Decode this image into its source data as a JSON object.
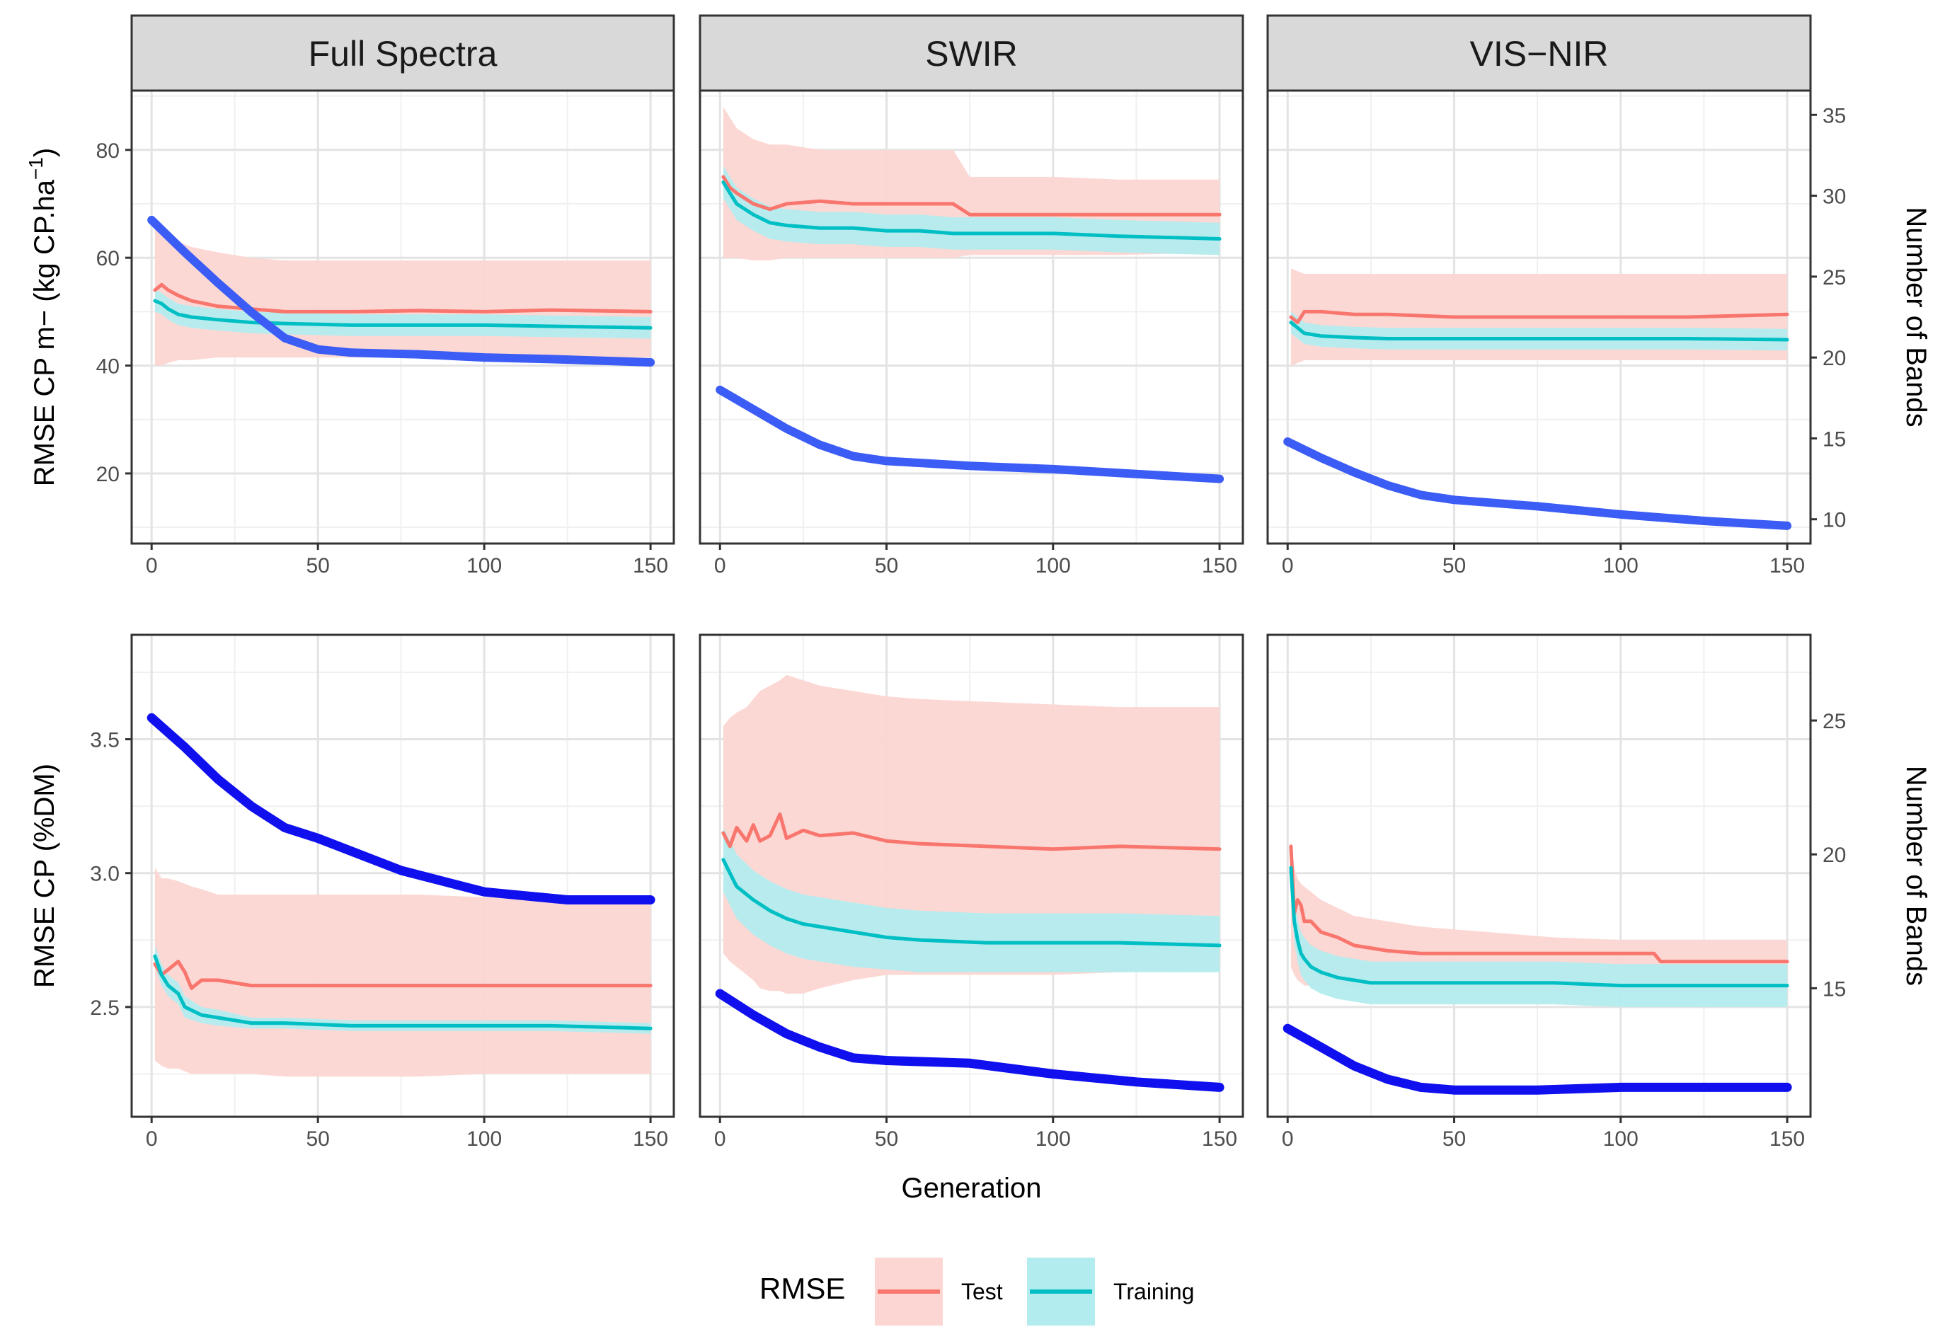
{
  "chart_data": {
    "type": "line",
    "facets": {
      "columns": [
        "Full Spectra",
        "SWIR",
        "VIS−NIR"
      ],
      "rows": [
        {
          "ylabel": "RMSE CP m− (kg CP.ha",
          "ylabel_superscript": "−1",
          "ylabel_suffix": ")",
          "ylim": [
            7,
            91
          ],
          "y_ticks": [
            20,
            40,
            60,
            80
          ],
          "y_tick_labels": [
            "20",
            "40",
            "60",
            "80"
          ],
          "sec_ylim": [
            8.5,
            36.5
          ],
          "sec_y_ticks": [
            10,
            15,
            20,
            25,
            30,
            35
          ],
          "sec_y_tick_labels": [
            "10",
            "15",
            "20",
            "25",
            "30",
            "35"
          ]
        },
        {
          "ylabel": "RMSE CP (%DM)",
          "ylabel_superscript": "",
          "ylabel_suffix": "",
          "ylim": [
            2.09,
            3.89
          ],
          "y_ticks": [
            2.5,
            3.0,
            3.5
          ],
          "y_tick_labels": [
            "2.5",
            "3.0",
            "3.5"
          ],
          "sec_ylim": [
            10.2,
            28.2
          ],
          "sec_y_ticks": [
            15,
            20,
            25
          ],
          "sec_y_tick_labels": [
            "15",
            "20",
            "25"
          ]
        }
      ]
    },
    "xlim": [
      -6,
      157
    ],
    "x_ticks": [
      0,
      50,
      100,
      150
    ],
    "x_tick_labels": [
      "0",
      "50",
      "100",
      "150"
    ],
    "xlabel": "Generation",
    "sec_ylabel": "Number of Bands",
    "legend": {
      "title": "RMSE",
      "entries": [
        {
          "label": "Test",
          "color": "#f8766d",
          "ribbon_color": "#fcd6d3"
        },
        {
          "label": "Training",
          "color": "#00bfc4",
          "ribbon_color": "#b3ecee"
        }
      ],
      "position": "bottom"
    },
    "bands_line_colors": [
      "#3b5cf5",
      "#1010ee"
    ],
    "panels": [
      {
        "row": 0,
        "col": 0,
        "test": {
          "x": [
            1,
            3,
            5,
            8,
            12,
            20,
            30,
            40,
            60,
            80,
            100,
            120,
            150
          ],
          "y": [
            54,
            55,
            54,
            53,
            52,
            51,
            50.5,
            50,
            50,
            50.2,
            50,
            50.3,
            50
          ],
          "lo": [
            40,
            40,
            40.5,
            41,
            41,
            41.5,
            41.5,
            41.5,
            41.5,
            41.5,
            41.5,
            41.5,
            41.5
          ],
          "hi": [
            67,
            66,
            65,
            63,
            62,
            61,
            60,
            59.5,
            59.5,
            59.5,
            59.5,
            59.5,
            59.5
          ]
        },
        "train": {
          "x": [
            1,
            3,
            5,
            8,
            12,
            20,
            30,
            40,
            60,
            80,
            100,
            120,
            150
          ],
          "y": [
            52,
            51.5,
            50.5,
            49.5,
            49,
            48.5,
            48,
            47.8,
            47.5,
            47.5,
            47.5,
            47.3,
            47
          ],
          "lo": [
            50,
            49.5,
            48.5,
            47.5,
            47,
            46.5,
            46,
            45.8,
            45.5,
            45.5,
            45.5,
            45.3,
            45
          ],
          "hi": [
            54,
            53.5,
            52.5,
            51.5,
            51,
            50.5,
            50,
            49.8,
            49.5,
            49.5,
            49.5,
            49.3,
            49
          ]
        },
        "bands": {
          "x": [
            0,
            10,
            20,
            30,
            40,
            50,
            60,
            80,
            100,
            120,
            150
          ],
          "y": [
            28.5,
            26.5,
            24.6,
            22.8,
            21.2,
            20.5,
            20.3,
            20.2,
            20.0,
            19.9,
            19.7
          ]
        }
      },
      {
        "row": 0,
        "col": 1,
        "test": {
          "x": [
            1,
            3,
            5,
            10,
            15,
            20,
            30,
            40,
            50,
            60,
            70,
            75,
            80,
            100,
            120,
            150
          ],
          "y": [
            75,
            73,
            72,
            70,
            69,
            70,
            70.5,
            70,
            70,
            70,
            70,
            68,
            68,
            68,
            68,
            68
          ],
          "lo": [
            60,
            60,
            60,
            59.5,
            59.5,
            60,
            60,
            60,
            60,
            60,
            60,
            60.5,
            60.5,
            60.5,
            60.5,
            61
          ],
          "hi": [
            88,
            86,
            84,
            82,
            81,
            81,
            80,
            80,
            80,
            80,
            80,
            75,
            75,
            75,
            74.5,
            74.5
          ]
        },
        "train": {
          "x": [
            1,
            3,
            5,
            10,
            15,
            20,
            30,
            40,
            50,
            60,
            70,
            80,
            100,
            120,
            150
          ],
          "y": [
            74,
            72,
            70,
            68,
            66.5,
            66,
            65.5,
            65.5,
            65,
            65,
            64.5,
            64.5,
            64.5,
            64,
            63.5
          ],
          "lo": [
            71,
            69,
            67,
            65,
            63.5,
            63,
            62.5,
            62.5,
            62,
            62,
            61.5,
            61.5,
            61.5,
            61,
            60.5
          ],
          "hi": [
            77,
            75,
            73,
            71,
            69.5,
            69,
            68.5,
            68.5,
            68,
            68,
            67.5,
            67.5,
            67.5,
            67,
            66.5
          ]
        },
        "bands": {
          "x": [
            0,
            10,
            20,
            30,
            40,
            50,
            75,
            100,
            125,
            150
          ],
          "y": [
            18.0,
            16.8,
            15.6,
            14.6,
            13.9,
            13.6,
            13.3,
            13.1,
            12.8,
            12.5
          ]
        }
      },
      {
        "row": 0,
        "col": 2,
        "test": {
          "x": [
            1,
            3,
            5,
            10,
            20,
            30,
            50,
            70,
            100,
            120,
            150
          ],
          "y": [
            49,
            48,
            50,
            50,
            49.5,
            49.5,
            49,
            49,
            49,
            49,
            49.5
          ],
          "lo": [
            40,
            40.5,
            41,
            41,
            41,
            41,
            41,
            41,
            41,
            41,
            41
          ],
          "hi": [
            58,
            57.5,
            57,
            57,
            57,
            57,
            57,
            57,
            57,
            57,
            57
          ]
        },
        "train": {
          "x": [
            1,
            3,
            5,
            10,
            20,
            30,
            50,
            70,
            100,
            120,
            150
          ],
          "y": [
            48,
            47,
            46,
            45.5,
            45.2,
            45,
            45,
            45,
            45,
            45,
            44.8
          ],
          "lo": [
            46,
            45,
            44,
            43.5,
            43.2,
            43,
            43,
            43,
            43,
            43,
            42.8
          ],
          "hi": [
            50,
            49,
            48,
            47.5,
            47.2,
            47,
            47,
            47,
            47,
            47,
            46.8
          ]
        },
        "bands": {
          "x": [
            0,
            10,
            20,
            30,
            40,
            50,
            75,
            100,
            125,
            150
          ],
          "y": [
            14.8,
            13.8,
            12.9,
            12.1,
            11.5,
            11.2,
            10.8,
            10.3,
            9.9,
            9.6
          ]
        }
      },
      {
        "row": 1,
        "col": 0,
        "test": {
          "x": [
            1,
            3,
            5,
            8,
            10,
            12,
            15,
            20,
            30,
            40,
            60,
            80,
            100,
            120,
            150
          ],
          "y": [
            2.66,
            2.62,
            2.64,
            2.67,
            2.63,
            2.57,
            2.6,
            2.6,
            2.58,
            2.58,
            2.58,
            2.58,
            2.58,
            2.58,
            2.58
          ],
          "lo": [
            2.3,
            2.28,
            2.27,
            2.27,
            2.26,
            2.25,
            2.25,
            2.25,
            2.25,
            2.24,
            2.24,
            2.24,
            2.25,
            2.25,
            2.25
          ],
          "hi": [
            3.02,
            2.98,
            2.98,
            2.97,
            2.96,
            2.95,
            2.94,
            2.92,
            2.92,
            2.92,
            2.92,
            2.92,
            2.91,
            2.91,
            2.9
          ]
        },
        "train": {
          "x": [
            1,
            3,
            5,
            8,
            10,
            15,
            20,
            30,
            40,
            60,
            80,
            100,
            120,
            150
          ],
          "y": [
            2.69,
            2.62,
            2.58,
            2.55,
            2.5,
            2.47,
            2.46,
            2.44,
            2.44,
            2.43,
            2.43,
            2.43,
            2.43,
            2.42
          ],
          "lo": [
            2.65,
            2.58,
            2.54,
            2.51,
            2.46,
            2.44,
            2.43,
            2.42,
            2.42,
            2.41,
            2.41,
            2.41,
            2.41,
            2.4
          ],
          "hi": [
            2.73,
            2.66,
            2.62,
            2.59,
            2.54,
            2.5,
            2.49,
            2.46,
            2.46,
            2.45,
            2.45,
            2.45,
            2.45,
            2.44
          ]
        },
        "bands": {
          "x": [
            0,
            10,
            20,
            30,
            40,
            50,
            75,
            100,
            125,
            150
          ],
          "y": [
            25.1,
            24.0,
            22.8,
            21.8,
            21.0,
            20.6,
            19.4,
            18.6,
            18.3,
            18.3
          ]
        }
      },
      {
        "row": 1,
        "col": 1,
        "test": {
          "x": [
            1,
            3,
            5,
            8,
            10,
            12,
            15,
            18,
            20,
            25,
            30,
            40,
            50,
            60,
            80,
            100,
            120,
            150
          ],
          "y": [
            3.15,
            3.1,
            3.17,
            3.12,
            3.18,
            3.12,
            3.14,
            3.22,
            3.13,
            3.16,
            3.14,
            3.15,
            3.12,
            3.11,
            3.1,
            3.09,
            3.1,
            3.09
          ],
          "lo": [
            2.7,
            2.67,
            2.65,
            2.62,
            2.6,
            2.57,
            2.56,
            2.56,
            2.55,
            2.55,
            2.57,
            2.6,
            2.62,
            2.62,
            2.62,
            2.62,
            2.63,
            2.64
          ],
          "hi": [
            3.55,
            3.58,
            3.6,
            3.62,
            3.65,
            3.68,
            3.7,
            3.72,
            3.74,
            3.72,
            3.7,
            3.68,
            3.66,
            3.65,
            3.64,
            3.63,
            3.62,
            3.62
          ]
        },
        "train": {
          "x": [
            1,
            3,
            5,
            10,
            15,
            20,
            25,
            30,
            40,
            50,
            60,
            80,
            100,
            120,
            150
          ],
          "y": [
            3.05,
            3.0,
            2.95,
            2.9,
            2.86,
            2.83,
            2.81,
            2.8,
            2.78,
            2.76,
            2.75,
            2.74,
            2.74,
            2.74,
            2.73
          ],
          "lo": [
            2.93,
            2.88,
            2.83,
            2.77,
            2.73,
            2.7,
            2.68,
            2.67,
            2.65,
            2.64,
            2.63,
            2.63,
            2.63,
            2.63,
            2.63
          ],
          "hi": [
            3.17,
            3.12,
            3.07,
            3.01,
            2.97,
            2.94,
            2.92,
            2.91,
            2.89,
            2.87,
            2.86,
            2.85,
            2.85,
            2.85,
            2.84
          ]
        },
        "bands": {
          "x": [
            0,
            10,
            20,
            30,
            40,
            50,
            75,
            100,
            125,
            150
          ],
          "y": [
            14.8,
            14.0,
            13.3,
            12.8,
            12.4,
            12.3,
            12.2,
            11.8,
            11.5,
            11.3
          ]
        }
      },
      {
        "row": 1,
        "col": 2,
        "test": {
          "x": [
            1,
            2,
            3,
            4,
            5,
            7,
            10,
            15,
            20,
            25,
            30,
            40,
            60,
            80,
            100,
            110,
            112,
            150
          ],
          "y": [
            3.1,
            2.85,
            2.9,
            2.88,
            2.82,
            2.82,
            2.78,
            2.76,
            2.73,
            2.72,
            2.71,
            2.7,
            2.7,
            2.7,
            2.7,
            2.7,
            2.67,
            2.67
          ],
          "lo": [
            2.65,
            2.62,
            2.6,
            2.59,
            2.58,
            2.58,
            2.58,
            2.58,
            2.57,
            2.56,
            2.56,
            2.56,
            2.56,
            2.56,
            2.56,
            2.56,
            2.56,
            2.56
          ],
          "hi": [
            3.12,
            3.02,
            2.98,
            2.96,
            2.95,
            2.93,
            2.9,
            2.87,
            2.84,
            2.83,
            2.82,
            2.8,
            2.78,
            2.76,
            2.75,
            2.75,
            2.75,
            2.75
          ]
        },
        "train": {
          "x": [
            1,
            2,
            3,
            4,
            5,
            7,
            10,
            15,
            20,
            25,
            30,
            40,
            60,
            80,
            100,
            120,
            150
          ],
          "y": [
            3.02,
            2.82,
            2.75,
            2.7,
            2.68,
            2.65,
            2.63,
            2.61,
            2.6,
            2.59,
            2.59,
            2.59,
            2.59,
            2.59,
            2.58,
            2.58,
            2.58
          ],
          "lo": [
            2.92,
            2.74,
            2.67,
            2.62,
            2.6,
            2.57,
            2.55,
            2.53,
            2.52,
            2.51,
            2.51,
            2.51,
            2.51,
            2.51,
            2.5,
            2.5,
            2.5
          ],
          "hi": [
            3.12,
            2.9,
            2.83,
            2.78,
            2.76,
            2.73,
            2.71,
            2.69,
            2.68,
            2.67,
            2.67,
            2.67,
            2.67,
            2.67,
            2.66,
            2.66,
            2.66
          ]
        },
        "bands": {
          "x": [
            0,
            10,
            20,
            30,
            40,
            50,
            75,
            100,
            125,
            150
          ],
          "y": [
            13.5,
            12.8,
            12.1,
            11.6,
            11.3,
            11.2,
            11.2,
            11.3,
            11.3,
            11.3
          ]
        }
      }
    ]
  }
}
